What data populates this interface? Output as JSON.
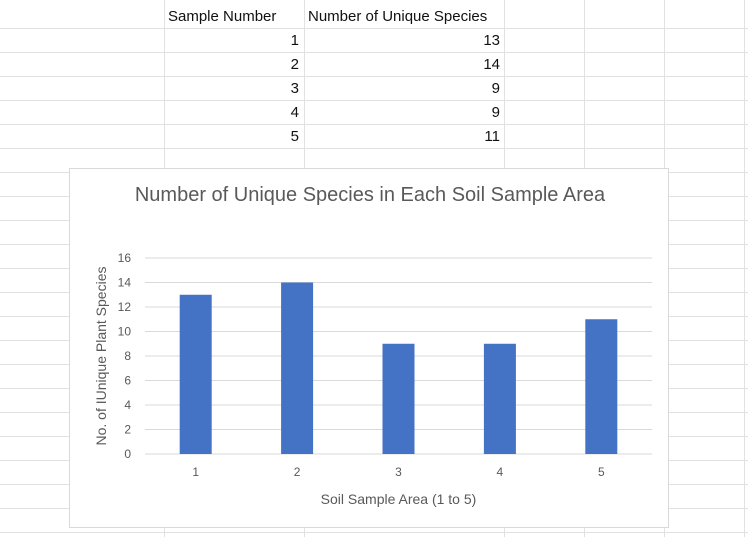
{
  "table": {
    "headers": [
      "Sample Number",
      "Number of Unique Species"
    ],
    "rows": [
      [
        "1",
        "13"
      ],
      [
        "2",
        "14"
      ],
      [
        "3",
        "9"
      ],
      [
        "4",
        "9"
      ],
      [
        "5",
        "11"
      ]
    ]
  },
  "chart_data": {
    "type": "bar",
    "title": "Number of Unique Species in Each Soil Sample Area",
    "xlabel": "Soil Sample Area (1 to 5)",
    "ylabel": "No. of IUnique Plant Species",
    "categories": [
      "1",
      "2",
      "3",
      "4",
      "5"
    ],
    "values": [
      13,
      14,
      9,
      9,
      11
    ],
    "ylim": [
      0,
      16
    ],
    "yticks": [
      0,
      2,
      4,
      6,
      8,
      10,
      12,
      14,
      16
    ],
    "grid": true,
    "bar_color": "#4472c4"
  }
}
